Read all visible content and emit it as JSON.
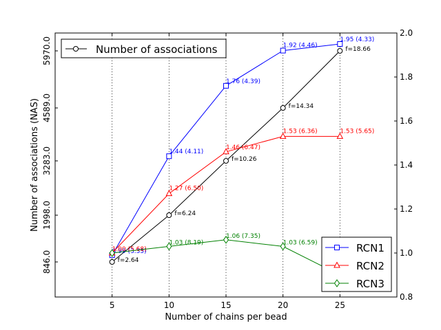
{
  "chart_data": {
    "type": "line",
    "title": "",
    "xlabel": "Number of chains per bead",
    "ylabel_left": "Number of associations (NAS)",
    "xlim": [
      0,
      30
    ],
    "x_ticks": [
      "5",
      "10",
      "15",
      "20",
      "25"
    ],
    "left_ticks": [
      {
        "label": "846.0",
        "value": 846
      },
      {
        "label": "1998.0",
        "value": 1998
      },
      {
        "label": "3283.0",
        "value": 3283
      },
      {
        "label": "4589.0",
        "value": 4589
      },
      {
        "label": "5970.0",
        "value": 5970
      }
    ],
    "ylim_right": [
      0.8,
      2.0
    ],
    "right_ticks": [
      "0.8",
      "1.0",
      "1.2",
      "1.4",
      "1.6",
      "1.8",
      "2.0"
    ],
    "grid": "vertical dotted lines at x ticks",
    "nas_series": {
      "name": "Number of associations",
      "color": "#000000",
      "marker": "circle",
      "x": [
        5,
        10,
        15,
        20,
        25
      ],
      "y": [
        846,
        1998,
        3283,
        4589,
        5970
      ],
      "labels": [
        "f=2.64",
        "f=6.24",
        "f=10.26",
        "f=14.34",
        "f=18.66"
      ]
    },
    "series": [
      {
        "name": "RCN1",
        "color": "#0000ff",
        "marker": "square",
        "x": [
          5,
          10,
          15,
          20,
          25
        ],
        "y": [
          0.99,
          1.44,
          1.76,
          1.92,
          1.95
        ],
        "labels": [
          "0.99 (3.35)",
          "1.44 (4.11)",
          "1.76 (4.39)",
          "1.92 (4.46)",
          "1.95 (4.33)"
        ]
      },
      {
        "name": "RCN2",
        "color": "#ff0000",
        "marker": "triangle",
        "x": [
          5,
          10,
          15,
          20,
          25
        ],
        "y": [
          1.0,
          1.27,
          1.46,
          1.53,
          1.53
        ],
        "labels": [
          "1.00 (5.68)",
          "1.27 (6.50)",
          "1.46 (6.47)",
          "1.53 (6.36)",
          "1.53 (5.65)"
        ]
      },
      {
        "name": "RCN3",
        "color": "#008000",
        "marker": "diamond",
        "x": [
          5,
          10,
          15,
          20,
          25
        ],
        "y": [
          1.0,
          1.03,
          1.06,
          1.03,
          0.9
        ],
        "labels": [
          "",
          "1.03 (8.19)",
          "1.06 (7.35)",
          "1.03 (6.59)",
          ""
        ]
      }
    ],
    "legend_top": {
      "placement": "top-left",
      "entries": [
        "Number of associations"
      ]
    },
    "legend_bottom": {
      "placement": "bottom-right",
      "entries": [
        "RCN1",
        "RCN2",
        "RCN3"
      ]
    }
  }
}
